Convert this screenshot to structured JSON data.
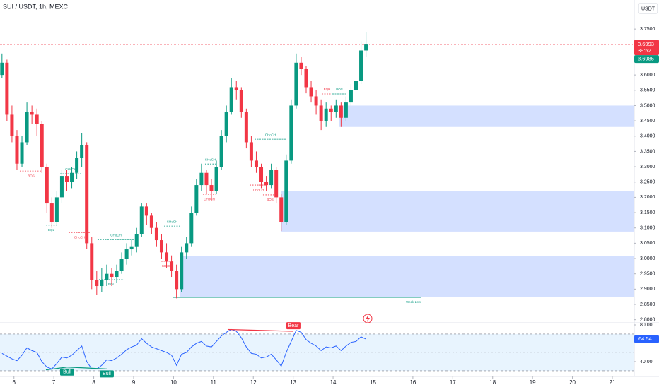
{
  "chart_data": {
    "type": "candlestick",
    "title": "SUI / USDT, 1h, MEXC",
    "currency": "USDT",
    "up_color": "#089981",
    "down_color": "#f23645",
    "xlim": [
      5.65,
      21.55
    ],
    "xticks": [
      6,
      7,
      8,
      9,
      10,
      11,
      12,
      13,
      14,
      15,
      16,
      17,
      18,
      19,
      20,
      21
    ],
    "ylim": [
      2.79,
      3.845
    ],
    "yticks": [
      {
        "value": 2.8,
        "label": "2.8000"
      },
      {
        "value": 2.85,
        "label": "2.8500"
      },
      {
        "value": 2.9,
        "label": "2.9000"
      },
      {
        "value": 2.95,
        "label": "2.9500"
      },
      {
        "value": 3.0,
        "label": "3.0000"
      },
      {
        "value": 3.05,
        "label": "3.0500"
      },
      {
        "value": 3.1,
        "label": "3.1000"
      },
      {
        "value": 3.15,
        "label": "3.1500"
      },
      {
        "value": 3.2,
        "label": "3.2000"
      },
      {
        "value": 3.25,
        "label": "3.2500"
      },
      {
        "value": 3.3,
        "label": "3.3000"
      },
      {
        "value": 3.35,
        "label": "3.3500"
      },
      {
        "value": 3.4,
        "label": "3.4000"
      },
      {
        "value": 3.45,
        "label": "3.4500"
      },
      {
        "value": 3.5,
        "label": "3.5000"
      },
      {
        "value": 3.55,
        "label": "3.5500"
      },
      {
        "value": 3.6,
        "label": "3.6000"
      },
      {
        "value": 3.65,
        "label": "3.6500"
      },
      {
        "value": 3.7,
        "label": "3.7000"
      },
      {
        "value": 3.75,
        "label": "3.7500"
      }
    ],
    "x": [
      5.7,
      5.825,
      5.95,
      6.075,
      6.2,
      6.325,
      6.45,
      6.575,
      6.7,
      6.825,
      6.95,
      7.075,
      7.2,
      7.325,
      7.45,
      7.575,
      7.7,
      7.825,
      7.95,
      8.075,
      8.2,
      8.325,
      8.45,
      8.575,
      8.7,
      8.825,
      8.95,
      9.075,
      9.2,
      9.325,
      9.45,
      9.575,
      9.7,
      9.825,
      9.95,
      10.075,
      10.2,
      10.325,
      10.45,
      10.575,
      10.7,
      10.825,
      10.95,
      11.075,
      11.2,
      11.325,
      11.45,
      11.575,
      11.7,
      11.825,
      11.95,
      12.075,
      12.2,
      12.325,
      12.45,
      12.575,
      12.7,
      12.825,
      12.95,
      13.075,
      13.2,
      13.325,
      13.45,
      13.575,
      13.7,
      13.825,
      13.95,
      14.075,
      14.2,
      14.325,
      14.45,
      14.575,
      14.7,
      14.825
    ],
    "candles": [
      [
        3.6,
        3.67,
        3.59,
        3.64
      ],
      [
        3.64,
        3.65,
        3.45,
        3.47
      ],
      [
        3.47,
        3.5,
        3.38,
        3.4
      ],
      [
        3.4,
        3.42,
        3.29,
        3.31
      ],
      [
        3.31,
        3.4,
        3.3,
        3.38
      ],
      [
        3.38,
        3.51,
        3.37,
        3.48
      ],
      [
        3.48,
        3.5,
        3.44,
        3.47
      ],
      [
        3.47,
        3.49,
        3.4,
        3.44
      ],
      [
        3.44,
        3.45,
        3.28,
        3.3
      ],
      [
        3.3,
        3.31,
        3.15,
        3.18
      ],
      [
        3.18,
        3.2,
        3.1,
        3.12
      ],
      [
        3.12,
        3.22,
        3.11,
        3.2
      ],
      [
        3.2,
        3.29,
        3.18,
        3.27
      ],
      [
        3.27,
        3.29,
        3.22,
        3.25
      ],
      [
        3.25,
        3.3,
        3.23,
        3.28
      ],
      [
        3.28,
        3.35,
        3.26,
        3.33
      ],
      [
        3.33,
        3.41,
        3.3,
        3.37
      ],
      [
        3.37,
        3.38,
        3.03,
        3.05
      ],
      [
        3.05,
        3.07,
        2.9,
        2.93
      ],
      [
        2.93,
        2.96,
        2.88,
        2.91
      ],
      [
        2.91,
        2.97,
        2.89,
        2.93
      ],
      [
        2.93,
        2.98,
        2.91,
        2.95
      ],
      [
        2.95,
        2.97,
        2.91,
        2.94
      ],
      [
        2.94,
        2.98,
        2.92,
        2.96
      ],
      [
        2.96,
        3.02,
        2.95,
        3.0
      ],
      [
        3.0,
        3.05,
        2.98,
        3.03
      ],
      [
        3.03,
        3.06,
        3.01,
        3.04
      ],
      [
        3.04,
        3.1,
        3.02,
        3.08
      ],
      [
        3.08,
        3.18,
        3.07,
        3.17
      ],
      [
        3.17,
        3.18,
        3.11,
        3.14
      ],
      [
        3.14,
        3.15,
        3.08,
        3.1
      ],
      [
        3.1,
        3.12,
        3.04,
        3.06
      ],
      [
        3.06,
        3.08,
        3.0,
        3.02
      ],
      [
        3.02,
        3.05,
        2.97,
        2.99
      ],
      [
        2.99,
        3.01,
        2.94,
        2.96
      ],
      [
        2.96,
        2.98,
        2.87,
        2.9
      ],
      [
        2.9,
        3.04,
        2.89,
        3.02
      ],
      [
        3.02,
        3.07,
        3.0,
        3.05
      ],
      [
        3.05,
        3.17,
        3.04,
        3.15
      ],
      [
        3.15,
        3.26,
        3.14,
        3.24
      ],
      [
        3.24,
        3.31,
        3.22,
        3.28
      ],
      [
        3.28,
        3.29,
        3.21,
        3.24
      ],
      [
        3.24,
        3.26,
        3.19,
        3.22
      ],
      [
        3.22,
        3.32,
        3.21,
        3.3
      ],
      [
        3.3,
        3.42,
        3.29,
        3.4
      ],
      [
        3.4,
        3.5,
        3.38,
        3.48
      ],
      [
        3.48,
        3.59,
        3.47,
        3.56
      ],
      [
        3.56,
        3.58,
        3.52,
        3.55
      ],
      [
        3.55,
        3.56,
        3.46,
        3.48
      ],
      [
        3.48,
        3.49,
        3.36,
        3.38
      ],
      [
        3.38,
        3.4,
        3.3,
        3.32
      ],
      [
        3.32,
        3.35,
        3.28,
        3.3
      ],
      [
        3.3,
        3.31,
        3.23,
        3.25
      ],
      [
        3.25,
        3.27,
        3.22,
        3.24
      ],
      [
        3.24,
        3.31,
        3.23,
        3.29
      ],
      [
        3.29,
        3.3,
        3.18,
        3.2
      ],
      [
        3.2,
        3.21,
        3.09,
        3.12
      ],
      [
        3.12,
        3.34,
        3.11,
        3.32
      ],
      [
        3.32,
        3.52,
        3.31,
        3.5
      ],
      [
        3.5,
        3.67,
        3.49,
        3.64
      ],
      [
        3.64,
        3.66,
        3.6,
        3.62
      ],
      [
        3.62,
        3.63,
        3.54,
        3.56
      ],
      [
        3.56,
        3.58,
        3.51,
        3.53
      ],
      [
        3.53,
        3.55,
        3.47,
        3.5
      ],
      [
        3.5,
        3.52,
        3.42,
        3.45
      ],
      [
        3.45,
        3.51,
        3.43,
        3.49
      ],
      [
        3.49,
        3.5,
        3.45,
        3.48
      ],
      [
        3.48,
        3.52,
        3.46,
        3.5
      ],
      [
        3.5,
        3.51,
        3.43,
        3.46
      ],
      [
        3.46,
        3.53,
        3.45,
        3.51
      ],
      [
        3.51,
        3.57,
        3.5,
        3.55
      ],
      [
        3.55,
        3.6,
        3.53,
        3.58
      ],
      [
        3.58,
        3.71,
        3.57,
        3.68
      ],
      [
        3.68,
        3.74,
        3.66,
        3.6993
      ]
    ],
    "last_price": 3.6993,
    "countdown": "39:52",
    "second_price": 3.6985,
    "zones": [
      {
        "from": 14.157,
        "top": 3.5,
        "bottom": 3.43
      },
      {
        "from": 12.687,
        "top": 3.22,
        "bottom": 3.088
      },
      {
        "from": 10.17,
        "top": 3.007,
        "bottom": 2.875
      }
    ],
    "annotations": [
      {
        "text": "BOS",
        "color": "#f23645",
        "x1": 6.146,
        "x2": 6.713,
        "price": 3.286,
        "pos": "below"
      },
      {
        "text": "CHoCH",
        "color": "#089981",
        "x1": 7.157,
        "x2": 7.688,
        "price": 3.277,
        "pos": "above"
      },
      {
        "text": "EQL",
        "color": "#089981",
        "x1": 6.802,
        "x2": 7.068,
        "price": 3.109,
        "pos": "below"
      },
      {
        "text": "CHoCH",
        "color": "#f23645",
        "x1": 7.369,
        "x2": 7.919,
        "price": 3.085,
        "pos": "below"
      },
      {
        "text": "CHoCH",
        "color": "#089981",
        "x1": 8.096,
        "x2": 9.018,
        "price": 3.062,
        "pos": "above"
      },
      {
        "text": "EQL",
        "color": "#089981",
        "x1": 8.131,
        "x2": 8.752,
        "price": 2.931,
        "pos": "below"
      },
      {
        "text": "CHoCH",
        "color": "#089981",
        "x1": 9.762,
        "x2": 10.17,
        "price": 3.106,
        "pos": "above"
      },
      {
        "text": "CHoCH",
        "color": "#f23645",
        "x1": 9.691,
        "x2": 9.992,
        "price": 2.991,
        "pos": "below"
      },
      {
        "text": "CHoCH",
        "color": "#089981",
        "x1": 10.79,
        "x2": 11.056,
        "price": 3.309,
        "pos": "above"
      },
      {
        "text": "CHoCH",
        "color": "#f23645",
        "x1": 10.737,
        "x2": 11.056,
        "price": 3.21,
        "pos": "below"
      },
      {
        "text": "CHoCH",
        "color": "#089981",
        "x1": 12.031,
        "x2": 12.828,
        "price": 3.39,
        "pos": "above"
      },
      {
        "text": "CHoCH",
        "color": "#f23645",
        "x1": 11.907,
        "x2": 12.35,
        "price": 3.24,
        "pos": "below"
      },
      {
        "text": "BOS",
        "color": "#f23645",
        "x1": 12.243,
        "x2": 12.598,
        "price": 3.208,
        "pos": "below"
      },
      {
        "text": "EQH",
        "color": "#f23645",
        "x1": 13.715,
        "x2": 13.981,
        "price": 3.538,
        "pos": "above"
      },
      {
        "text": "BOS",
        "color": "#089981",
        "x1": 13.981,
        "x2": 14.335,
        "price": 3.538,
        "pos": "above"
      },
      {
        "text": "Weak Low",
        "color": "#089981",
        "x1": 9.992,
        "x2": 16.196,
        "price": 2.873,
        "pos": "below",
        "align": "end"
      }
    ],
    "rsi": {
      "color": "#2962ff",
      "ylim": [
        23.8,
        82.3
      ],
      "yticks": [
        {
          "value": 40,
          "label": "40.00"
        },
        {
          "value": 80,
          "label": "80.00"
        }
      ],
      "band": [
        30,
        70
      ],
      "mid": 50,
      "values": [
        49,
        46,
        43,
        41,
        47,
        55,
        52,
        50,
        40,
        34,
        32,
        38,
        45,
        44,
        47,
        52,
        57,
        40,
        32,
        32,
        36,
        42,
        41,
        44,
        48,
        53,
        56,
        58,
        65,
        60,
        56,
        54,
        52,
        50,
        47,
        36,
        48,
        50,
        56,
        60,
        62,
        57,
        56,
        62,
        68,
        72,
        75,
        73,
        66,
        56,
        49,
        48,
        44,
        45,
        48,
        42,
        35,
        50,
        62,
        74,
        72,
        64,
        60,
        57,
        52,
        56,
        55,
        57,
        52,
        57,
        61,
        62,
        67,
        64.54
      ],
      "divergences": [
        {
          "label": "Bull",
          "color": "#089981",
          "x1": 6.802,
          "v1": 31,
          "x2": 7.334,
          "v2": 34
        },
        {
          "label": "Bull",
          "color": "#089981",
          "x1": 7.334,
          "v1": 34,
          "x2": 8.326,
          "v2": 32
        },
        {
          "label": "Bear",
          "color": "#f23645",
          "x1": 11.357,
          "v1": 75,
          "x2": 13.005,
          "v2": 73
        }
      ]
    }
  }
}
